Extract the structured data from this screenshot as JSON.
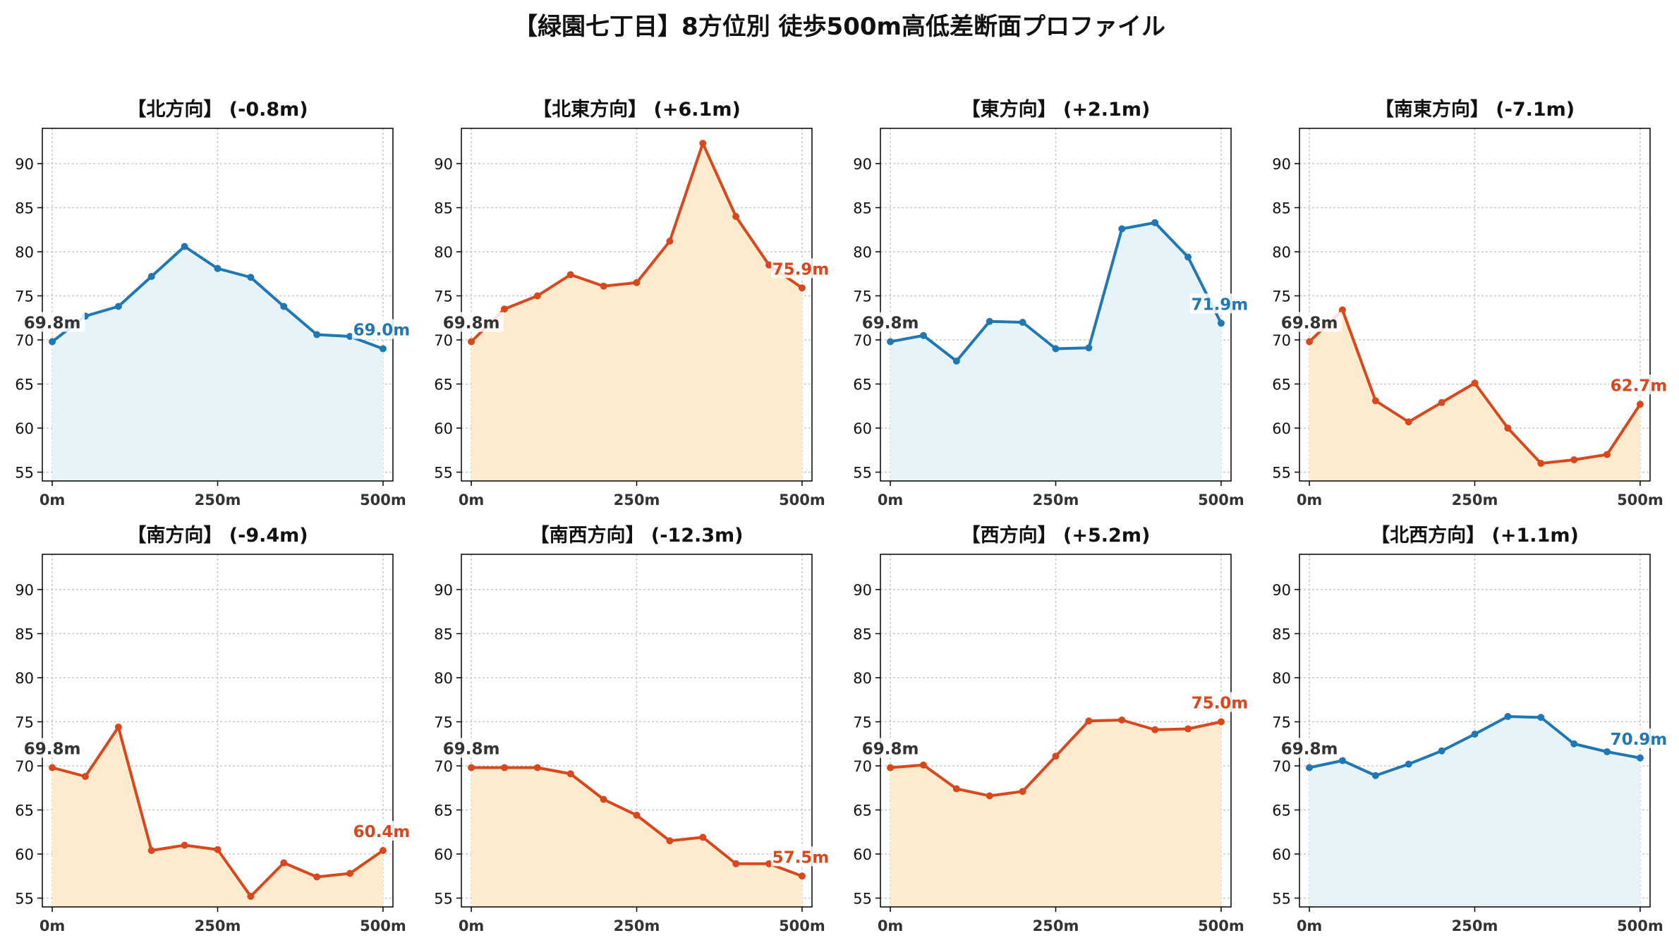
{
  "title": "【緑園七丁目】8方位別 徒歩500m高低差断面プロファイル",
  "colors": {
    "up_line": "#1f77b4",
    "up_fill": "#e6f4fa",
    "down_line": "#d9481c",
    "down_fill": "#fdebd0",
    "start_label": "#333333",
    "grid": "#c8c8c8",
    "axis": "#000000"
  },
  "shared_axes": {
    "ylim": [
      54,
      94
    ],
    "yticks": [
      55,
      60,
      65,
      70,
      75,
      80,
      85,
      90
    ],
    "xlim": [
      -15,
      515
    ],
    "xticks": [
      0,
      250,
      500
    ],
    "xtick_labels": [
      "0m",
      "250m",
      "500m"
    ],
    "grid": true
  },
  "chart_data": [
    {
      "type": "line",
      "title": "【北方向】 (-0.8m)",
      "trend": "up",
      "x": [
        0,
        50,
        100,
        150,
        200,
        250,
        300,
        350,
        400,
        450,
        500
      ],
      "y": [
        69.8,
        72.7,
        73.8,
        77.2,
        80.6,
        78.1,
        77.1,
        73.8,
        70.6,
        70.4,
        69.0
      ],
      "start_label": "69.8m",
      "end_label": "69.0m"
    },
    {
      "type": "line",
      "title": "【北東方向】 (+6.1m)",
      "trend": "down",
      "x": [
        0,
        50,
        100,
        150,
        200,
        250,
        300,
        350,
        400,
        450,
        500
      ],
      "y": [
        69.8,
        73.5,
        75.0,
        77.4,
        76.1,
        76.5,
        81.2,
        92.3,
        84.0,
        78.5,
        75.9
      ],
      "start_label": "69.8m",
      "end_label": "75.9m"
    },
    {
      "type": "line",
      "title": "【東方向】 (+2.1m)",
      "trend": "up",
      "x": [
        0,
        50,
        100,
        150,
        200,
        250,
        300,
        350,
        400,
        450,
        500
      ],
      "y": [
        69.8,
        70.5,
        67.6,
        72.1,
        72.0,
        69.0,
        69.1,
        82.6,
        83.3,
        79.4,
        71.9
      ],
      "start_label": "69.8m",
      "end_label": "71.9m"
    },
    {
      "type": "line",
      "title": "【南東方向】 (-7.1m)",
      "trend": "down",
      "x": [
        0,
        50,
        100,
        150,
        200,
        250,
        300,
        350,
        400,
        450,
        500
      ],
      "y": [
        69.8,
        73.4,
        63.1,
        60.7,
        62.9,
        65.1,
        60.0,
        56.0,
        56.4,
        57.0,
        62.7
      ],
      "start_label": "69.8m",
      "end_label": "62.7m"
    },
    {
      "type": "line",
      "title": "【南方向】 (-9.4m)",
      "trend": "down",
      "x": [
        0,
        50,
        100,
        150,
        200,
        250,
        300,
        350,
        400,
        450,
        500
      ],
      "y": [
        69.8,
        68.8,
        74.4,
        60.4,
        61.0,
        60.5,
        55.2,
        59.0,
        57.4,
        57.8,
        60.4
      ],
      "start_label": "69.8m",
      "end_label": "60.4m"
    },
    {
      "type": "line",
      "title": "【南西方向】 (-12.3m)",
      "trend": "down",
      "x": [
        0,
        50,
        100,
        150,
        200,
        250,
        300,
        350,
        400,
        450,
        500
      ],
      "y": [
        69.8,
        69.8,
        69.8,
        69.1,
        66.2,
        64.4,
        61.5,
        61.9,
        58.9,
        58.9,
        57.5
      ],
      "start_label": "69.8m",
      "end_label": "57.5m"
    },
    {
      "type": "line",
      "title": "【西方向】 (+5.2m)",
      "trend": "down",
      "x": [
        0,
        50,
        100,
        150,
        200,
        250,
        300,
        350,
        400,
        450,
        500
      ],
      "y": [
        69.8,
        70.1,
        67.4,
        66.6,
        67.1,
        71.1,
        75.1,
        75.2,
        74.1,
        74.2,
        75.0
      ],
      "start_label": "69.8m",
      "end_label": "75.0m"
    },
    {
      "type": "line",
      "title": "【北西方向】 (+1.1m)",
      "trend": "up",
      "x": [
        0,
        50,
        100,
        150,
        200,
        250,
        300,
        350,
        400,
        450,
        500
      ],
      "y": [
        69.8,
        70.6,
        68.9,
        70.2,
        71.7,
        73.6,
        75.6,
        75.5,
        72.5,
        71.6,
        70.9
      ],
      "start_label": "69.8m",
      "end_label": "70.9m"
    }
  ]
}
